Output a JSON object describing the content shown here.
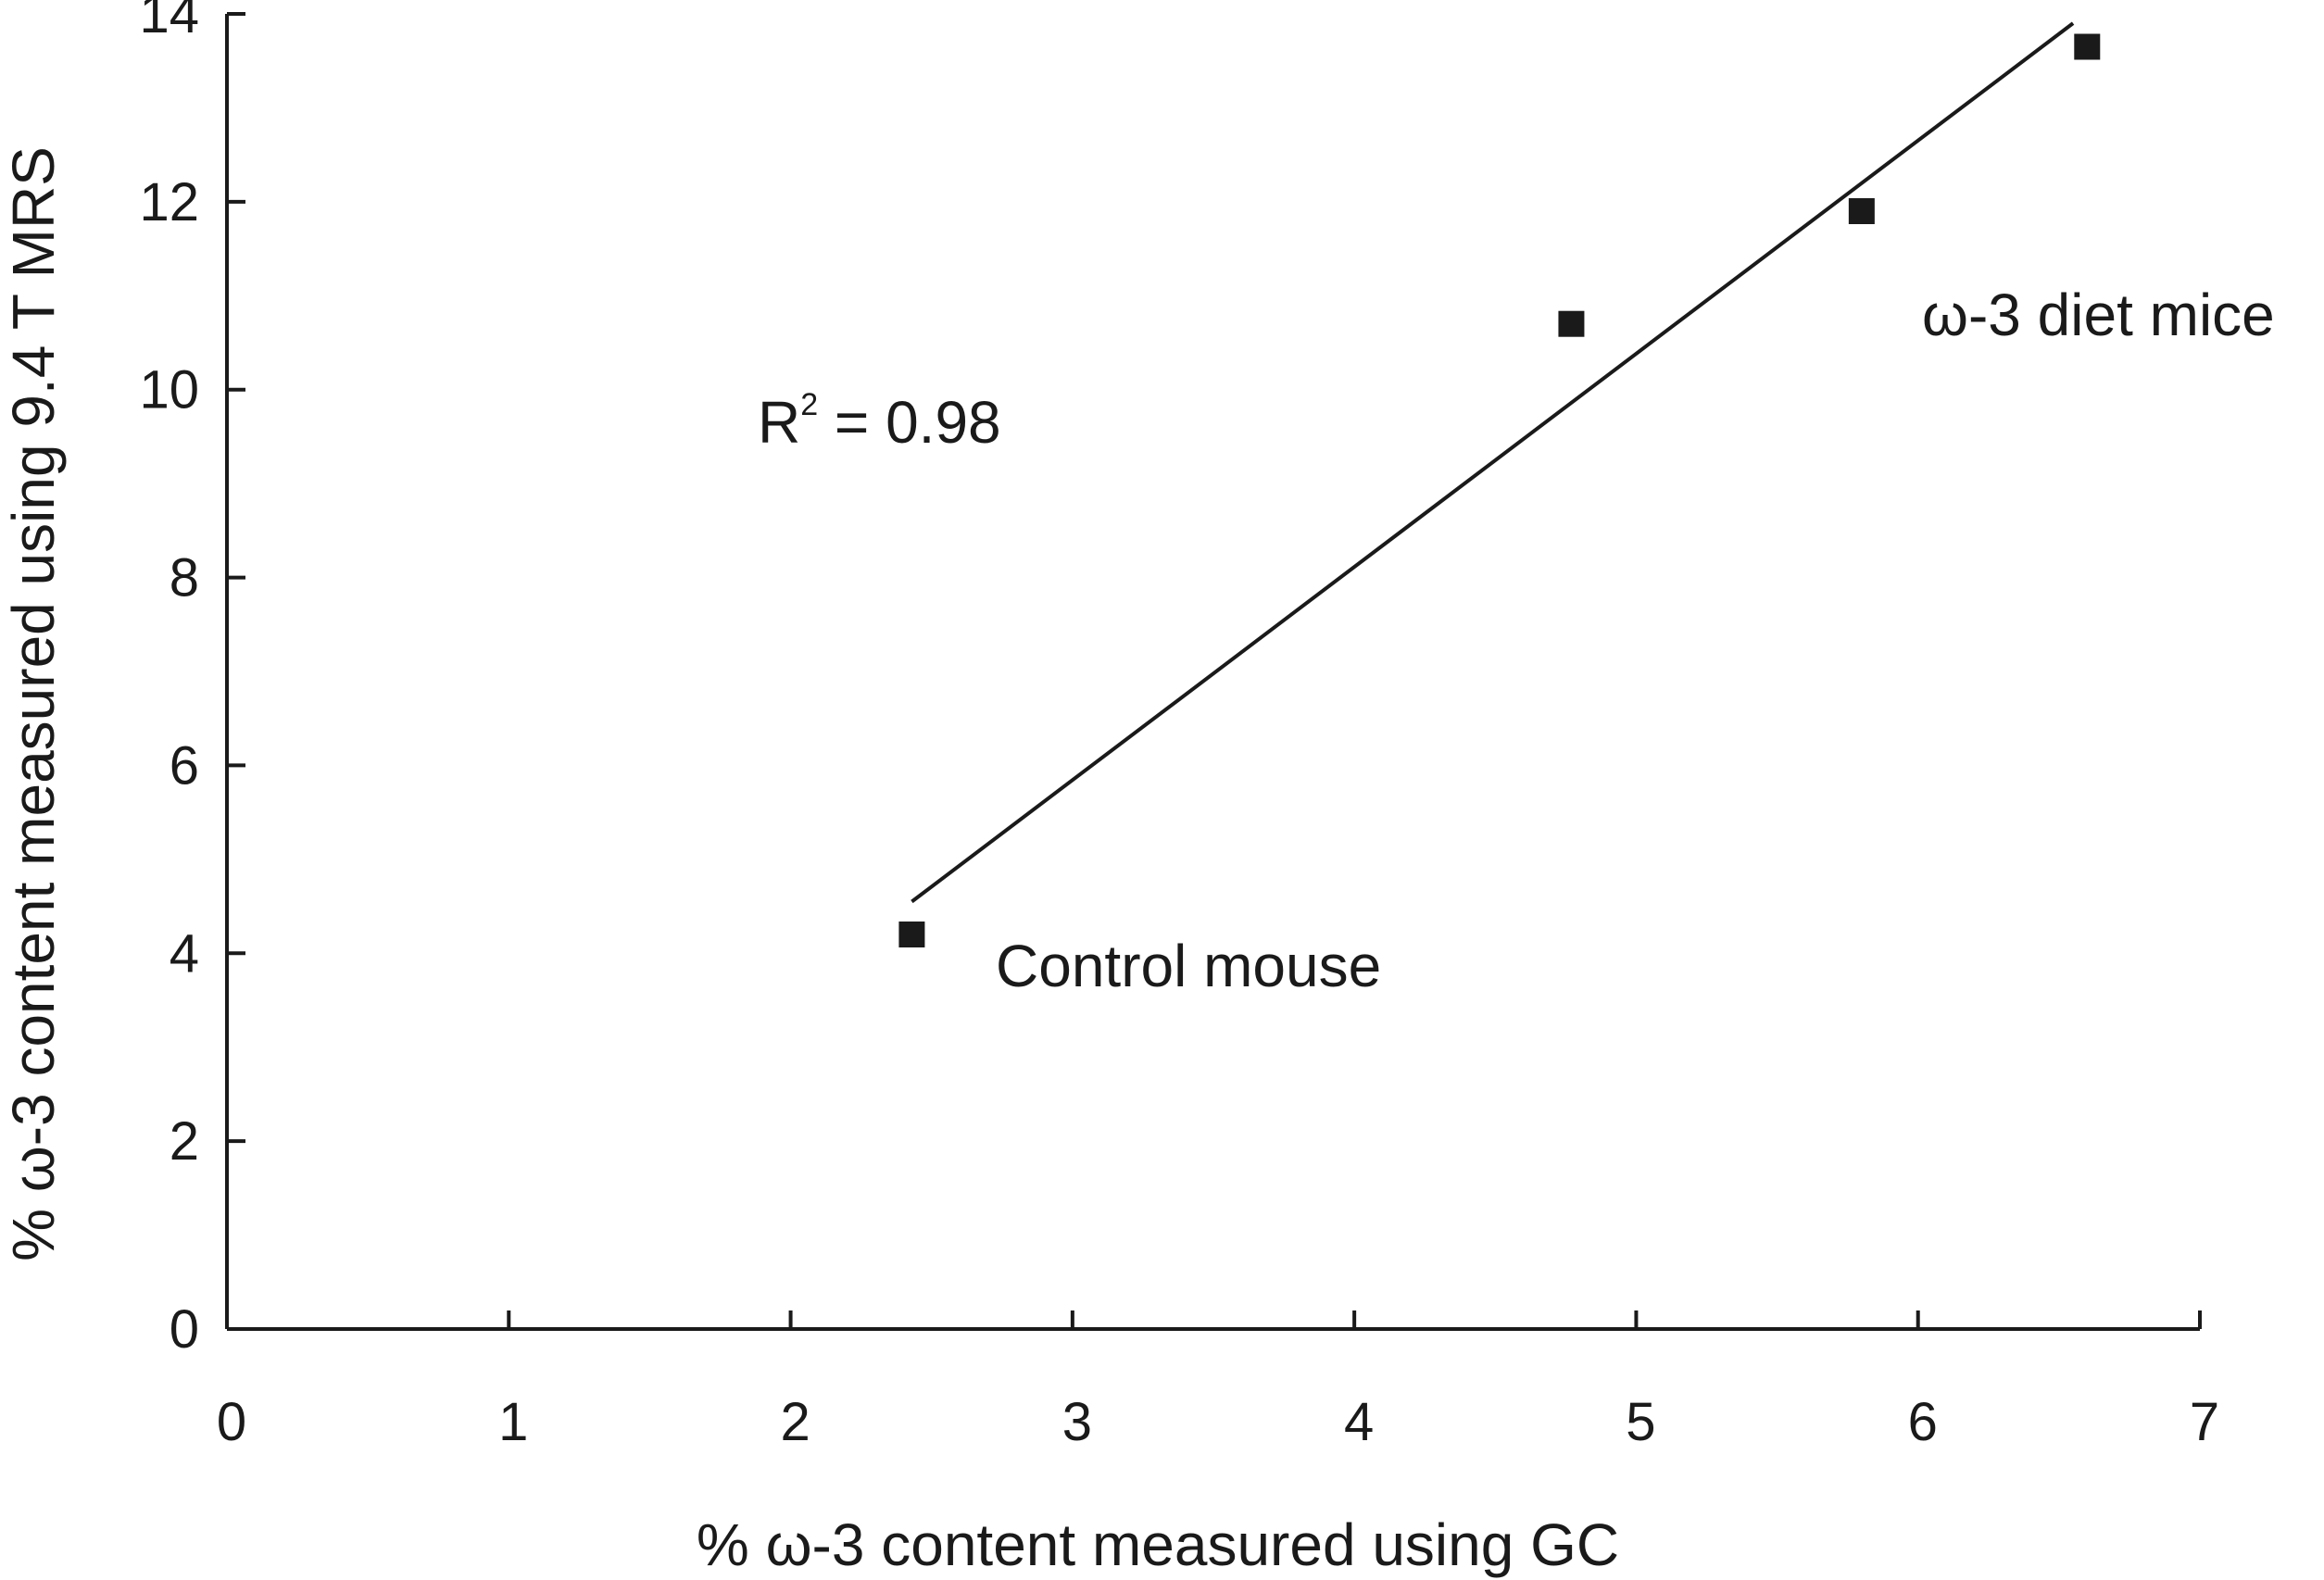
{
  "chart_data": {
    "type": "scatter",
    "title": "",
    "xlabel": "% ω-3 content measured using GC",
    "ylabel": "% ω-3 content measured using 9.4 T MRS",
    "xlim": [
      0,
      7
    ],
    "ylim": [
      0,
      14
    ],
    "x_ticks": [
      0,
      1,
      2,
      3,
      4,
      5,
      6,
      7
    ],
    "y_ticks": [
      0,
      2,
      4,
      6,
      8,
      10,
      12,
      14
    ],
    "x_tick_labels": [
      "0",
      "1",
      "2",
      "3",
      "4",
      "5",
      "6",
      "7"
    ],
    "y_tick_labels": [
      "0",
      "2",
      "4",
      "6",
      "8",
      "10",
      "12",
      "14"
    ],
    "grid": false,
    "series": [
      {
        "name": "Control mouse",
        "points": [
          {
            "x": 2.43,
            "y": 4.2
          }
        ]
      },
      {
        "name": "ω-3 diet mice",
        "points": [
          {
            "x": 4.77,
            "y": 10.7
          },
          {
            "x": 5.8,
            "y": 11.9
          },
          {
            "x": 6.6,
            "y": 13.65
          }
        ]
      }
    ],
    "fit_line": {
      "x": [
        2.43,
        6.55
      ],
      "y": [
        4.55,
        13.9
      ]
    },
    "annotations": {
      "r2_prefix": "R",
      "r2_exponent": "2",
      "r2_value": " = 0.98",
      "control_label": "Control mouse",
      "diet_label": "ω-3 diet mice"
    },
    "colors": {
      "ink": "#1a1a1a",
      "background": "#ffffff"
    }
  }
}
